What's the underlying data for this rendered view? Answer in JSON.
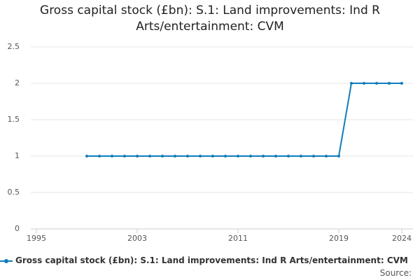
{
  "chart_data": {
    "type": "line",
    "title": "Gross capital stock (£bn): S.1: Land improvements: Ind R Arts/entertainment: CVM",
    "x": [
      1999,
      2000,
      2001,
      2002,
      2003,
      2004,
      2005,
      2006,
      2007,
      2008,
      2009,
      2010,
      2011,
      2012,
      2013,
      2014,
      2015,
      2016,
      2017,
      2018,
      2019,
      2020,
      2021,
      2022,
      2023,
      2024
    ],
    "series": [
      {
        "name": "Gross capital stock (£bn): S.1: Land improvements: Ind R Arts/entertainment: CVM",
        "color": "#0f7dbd",
        "values": [
          1,
          1,
          1,
          1,
          1,
          1,
          1,
          1,
          1,
          1,
          1,
          1,
          1,
          1,
          1,
          1,
          1,
          1,
          1,
          1,
          1,
          2,
          2,
          2,
          2,
          2
        ]
      }
    ],
    "xlim": [
      1995,
      2024
    ],
    "xticks": [
      1995,
      2003,
      2011,
      2019,
      2024
    ],
    "ylim": [
      0,
      2.5
    ],
    "yticks": [
      0,
      0.5,
      1,
      1.5,
      2,
      2.5
    ],
    "grid": true,
    "source_label": "Source:"
  }
}
